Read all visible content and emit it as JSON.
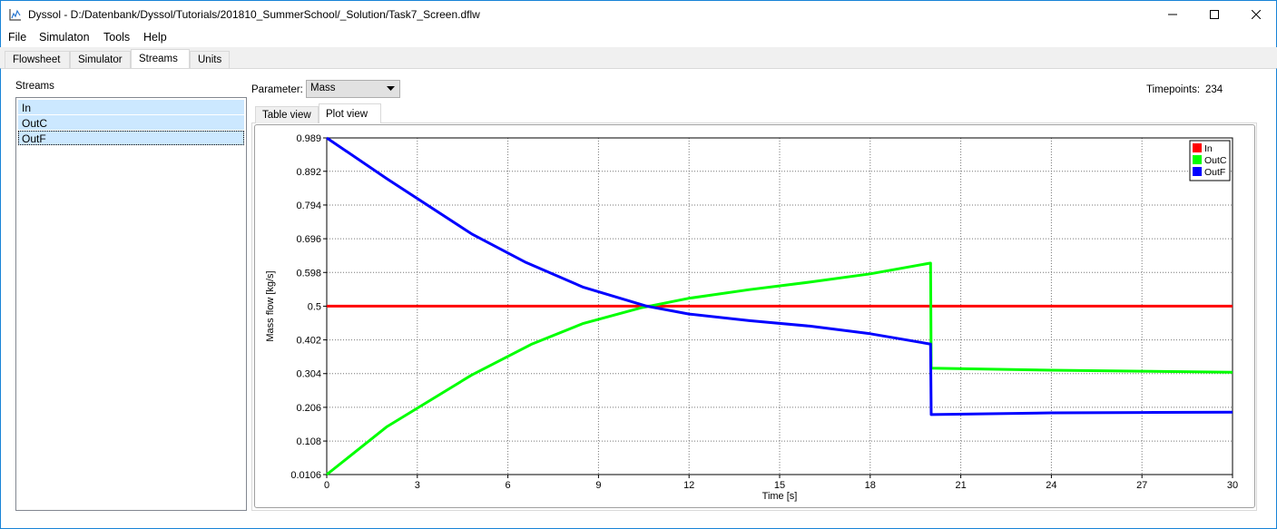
{
  "window": {
    "title": "Dyssol - D:/Datenbank/Dyssol/Tutorials/201810_SummerSchool/_Solution/Task7_Screen.dflw",
    "controls": [
      "minimize-icon",
      "maximize-icon",
      "close-icon"
    ]
  },
  "menu": {
    "items": [
      "File",
      "Simulaton",
      "Tools",
      "Help"
    ]
  },
  "tabs": {
    "items": [
      "Flowsheet",
      "Simulator",
      "Streams",
      "Units"
    ],
    "active": "Streams"
  },
  "streams": {
    "label": "Streams",
    "items": [
      "In",
      "OutC",
      "OutF"
    ],
    "selected": [
      "In",
      "OutC",
      "OutF"
    ],
    "current": "OutF"
  },
  "parameter": {
    "label": "Parameter:",
    "value": "Mass"
  },
  "timepoints": {
    "label": "Timepoints:",
    "value": "234"
  },
  "view_tabs": {
    "items": [
      "Table view",
      "Plot view"
    ],
    "active": "Plot view"
  },
  "colors": {
    "In": "#ff0000",
    "OutC": "#00ff00",
    "OutF": "#0000ff",
    "selection": "#cce8ff",
    "window_border": "#1883d7"
  },
  "chart_data": {
    "type": "line",
    "xlabel": "Time [s]",
    "ylabel": "Mass flow [kg/s]",
    "xlim": [
      0,
      30
    ],
    "ylim": [
      0.0106,
      0.989
    ],
    "xticks": [
      "0",
      "3",
      "6",
      "9",
      "12",
      "15",
      "18",
      "21",
      "24",
      "27",
      "30"
    ],
    "yticks": [
      "0.0106",
      "0.108",
      "0.206",
      "0.304",
      "0.402",
      "0.5",
      "0.598",
      "0.696",
      "0.794",
      "0.892",
      "0.989"
    ],
    "grid": true,
    "legend": {
      "position": "top-right",
      "entries": [
        "In",
        "OutC",
        "OutF"
      ]
    },
    "series": [
      {
        "name": "In",
        "x": [
          0,
          30
        ],
        "y": [
          0.5,
          0.5
        ]
      },
      {
        "name": "OutC",
        "x": [
          0,
          2,
          4.8,
          6.8,
          8.5,
          10.4,
          12,
          14,
          16,
          18,
          19.98,
          20,
          20.02,
          24,
          27,
          30
        ],
        "y": [
          0.0106,
          0.15,
          0.3,
          0.39,
          0.45,
          0.495,
          0.523,
          0.548,
          0.57,
          0.594,
          0.625,
          0.625,
          0.32,
          0.314,
          0.311,
          0.308
        ]
      },
      {
        "name": "OutF",
        "x": [
          0,
          2,
          4.8,
          6.6,
          8.5,
          10.6,
          12,
          14,
          16,
          18,
          19.98,
          20,
          20.02,
          24,
          27,
          30
        ],
        "y": [
          0.989,
          0.87,
          0.71,
          0.627,
          0.555,
          0.5,
          0.477,
          0.458,
          0.442,
          0.42,
          0.39,
          0.39,
          0.185,
          0.19,
          0.191,
          0.192
        ]
      }
    ]
  }
}
